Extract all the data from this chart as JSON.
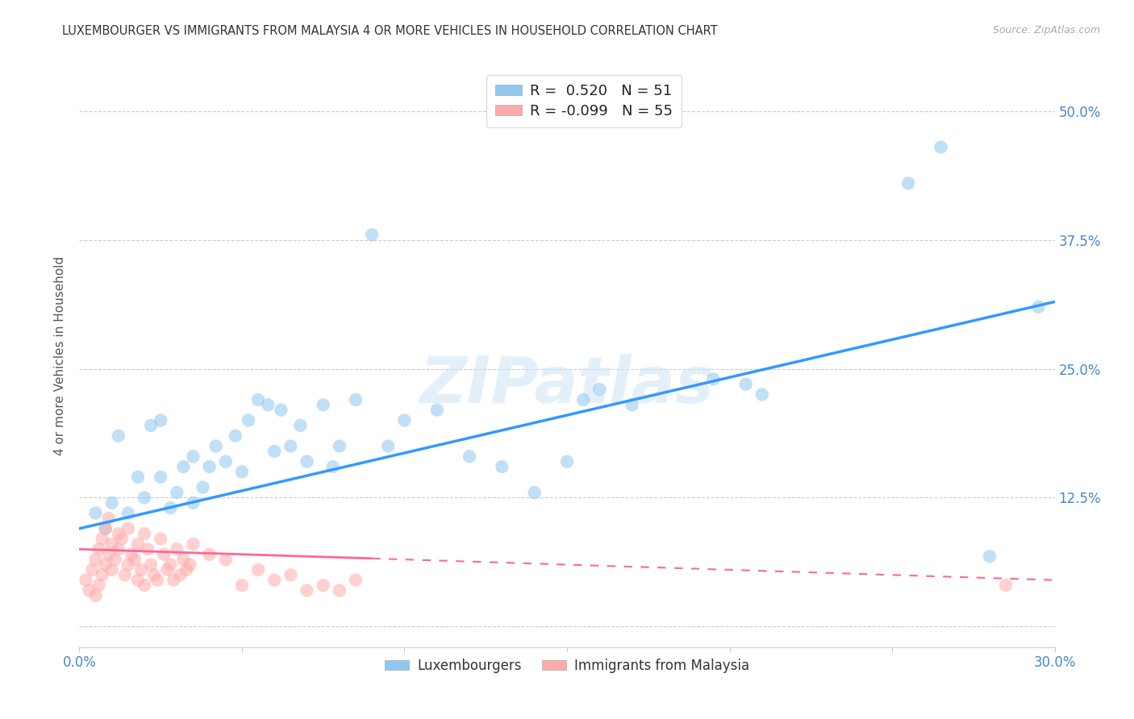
{
  "title": "LUXEMBOURGER VS IMMIGRANTS FROM MALAYSIA 4 OR MORE VEHICLES IN HOUSEHOLD CORRELATION CHART",
  "source": "Source: ZipAtlas.com",
  "ylabel": "4 or more Vehicles in Household",
  "xlim": [
    0.0,
    0.3
  ],
  "ylim": [
    -0.02,
    0.545
  ],
  "xticks": [
    0.0,
    0.05,
    0.1,
    0.15,
    0.2,
    0.25,
    0.3
  ],
  "xticklabels": [
    "0.0%",
    "",
    "",
    "",
    "",
    "",
    "30.0%"
  ],
  "yticks": [
    0.0,
    0.125,
    0.25,
    0.375,
    0.5
  ],
  "yticklabels_right": [
    "",
    "12.5%",
    "25.0%",
    "37.5%",
    "50.0%"
  ],
  "grid_color": "#cccccc",
  "background_color": "#ffffff",
  "watermark_text": "ZIPatlas",
  "legend_R1": "0.520",
  "legend_N1": "51",
  "legend_R2": "-0.099",
  "legend_N2": "55",
  "legend_label1": "Luxembourgers",
  "legend_label2": "Immigrants from Malaysia",
  "blue_color": "#8ec8f0",
  "blue_line_color": "#3399ff",
  "pink_color": "#ffaaaa",
  "pink_line_color": "#ff6699",
  "blue_line_x0": 0.0,
  "blue_line_y0": 0.095,
  "blue_line_x1": 0.3,
  "blue_line_y1": 0.315,
  "pink_line_x0": 0.0,
  "pink_line_y0": 0.075,
  "pink_line_x1": 0.3,
  "pink_line_y1": 0.045,
  "blue_scatter_x": [
    0.005,
    0.008,
    0.01,
    0.012,
    0.015,
    0.018,
    0.02,
    0.022,
    0.025,
    0.025,
    0.028,
    0.03,
    0.032,
    0.035,
    0.035,
    0.038,
    0.04,
    0.042,
    0.045,
    0.048,
    0.05,
    0.052,
    0.055,
    0.058,
    0.06,
    0.062,
    0.065,
    0.068,
    0.07,
    0.075,
    0.078,
    0.08,
    0.085,
    0.09,
    0.095,
    0.1,
    0.11,
    0.12,
    0.13,
    0.14,
    0.15,
    0.155,
    0.16,
    0.17,
    0.195,
    0.205,
    0.21,
    0.255,
    0.265,
    0.28,
    0.295
  ],
  "blue_scatter_y": [
    0.11,
    0.095,
    0.12,
    0.185,
    0.11,
    0.145,
    0.125,
    0.195,
    0.145,
    0.2,
    0.115,
    0.13,
    0.155,
    0.12,
    0.165,
    0.135,
    0.155,
    0.175,
    0.16,
    0.185,
    0.15,
    0.2,
    0.22,
    0.215,
    0.17,
    0.21,
    0.175,
    0.195,
    0.16,
    0.215,
    0.155,
    0.175,
    0.22,
    0.38,
    0.175,
    0.2,
    0.21,
    0.165,
    0.155,
    0.13,
    0.16,
    0.22,
    0.23,
    0.215,
    0.24,
    0.235,
    0.225,
    0.43,
    0.465,
    0.068,
    0.31
  ],
  "pink_scatter_x": [
    0.002,
    0.003,
    0.004,
    0.005,
    0.005,
    0.006,
    0.006,
    0.007,
    0.007,
    0.008,
    0.008,
    0.009,
    0.009,
    0.01,
    0.01,
    0.011,
    0.012,
    0.012,
    0.013,
    0.014,
    0.015,
    0.015,
    0.016,
    0.017,
    0.018,
    0.018,
    0.019,
    0.02,
    0.02,
    0.021,
    0.022,
    0.023,
    0.024,
    0.025,
    0.026,
    0.027,
    0.028,
    0.029,
    0.03,
    0.031,
    0.032,
    0.033,
    0.034,
    0.035,
    0.04,
    0.045,
    0.05,
    0.055,
    0.06,
    0.065,
    0.07,
    0.075,
    0.08,
    0.085,
    0.285
  ],
  "pink_scatter_y": [
    0.045,
    0.035,
    0.055,
    0.03,
    0.065,
    0.04,
    0.075,
    0.05,
    0.085,
    0.06,
    0.095,
    0.07,
    0.105,
    0.055,
    0.08,
    0.065,
    0.075,
    0.09,
    0.085,
    0.05,
    0.06,
    0.095,
    0.07,
    0.065,
    0.08,
    0.045,
    0.055,
    0.09,
    0.04,
    0.075,
    0.06,
    0.05,
    0.045,
    0.085,
    0.07,
    0.055,
    0.06,
    0.045,
    0.075,
    0.05,
    0.065,
    0.055,
    0.06,
    0.08,
    0.07,
    0.065,
    0.04,
    0.055,
    0.045,
    0.05,
    0.035,
    0.04,
    0.035,
    0.045,
    0.04
  ]
}
